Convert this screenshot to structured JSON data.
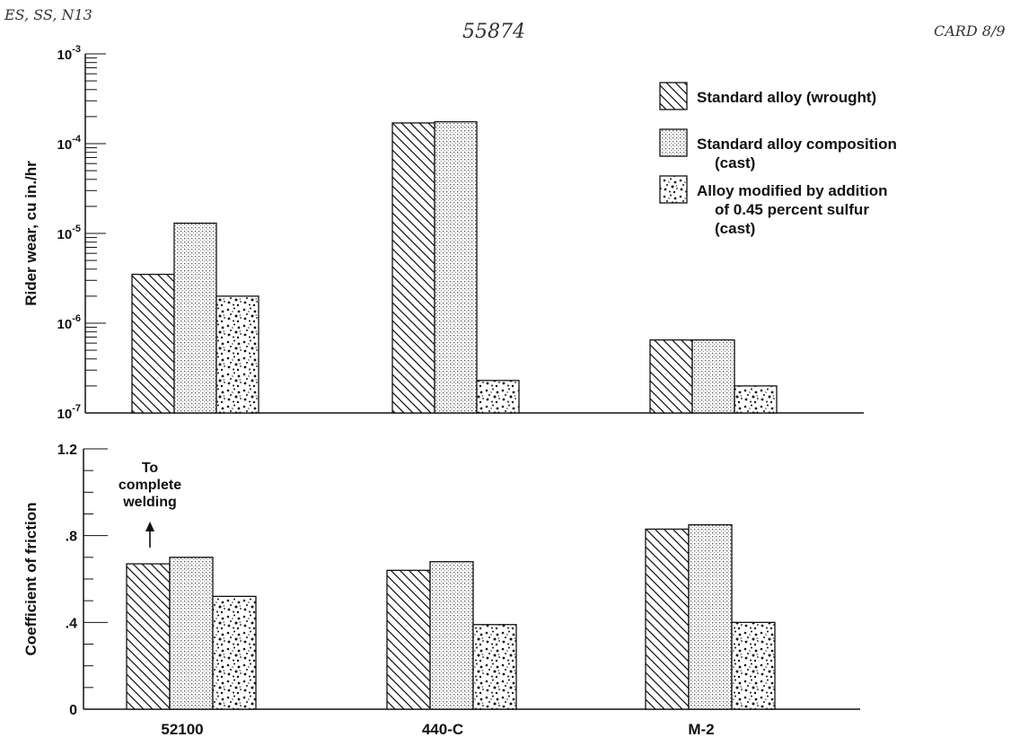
{
  "annotations": {
    "top_left": "ES, SS, N13",
    "top_center": "55874",
    "top_right": "CARD 8/9"
  },
  "legend": [
    {
      "lines": [
        "Standard alloy (wrought)"
      ],
      "pattern": "hatch"
    },
    {
      "lines": [
        "Standard alloy composition",
        "(cast)"
      ],
      "pattern": "fine-dots"
    },
    {
      "lines": [
        "Alloy modified by addition",
        "of 0.45 percent sulfur",
        "(cast)"
      ],
      "pattern": "speckle"
    }
  ],
  "friction_note": [
    "To",
    "complete",
    "welding"
  ],
  "chart_data": [
    {
      "type": "bar",
      "ylabel": "Rider wear, cu in./hr",
      "yscale": "log",
      "ylim": [
        1e-07,
        0.001
      ],
      "ytick_labels": [
        {
          "value": 1e-07,
          "base": "10",
          "exp": "-7"
        },
        {
          "value": 1e-06,
          "base": "10",
          "exp": "-6"
        },
        {
          "value": 1e-05,
          "base": "10",
          "exp": "-5"
        },
        {
          "value": 0.0001,
          "base": "10",
          "exp": "-4"
        },
        {
          "value": 0.001,
          "base": "10",
          "exp": "-3"
        }
      ],
      "categories": [
        "52100",
        "440-C",
        "M-2"
      ],
      "series": [
        {
          "name": "Standard alloy (wrought)",
          "values": [
            3.5e-06,
            0.00017,
            6.5e-07
          ]
        },
        {
          "name": "Standard alloy composition (cast)",
          "values": [
            1.3e-05,
            0.000175,
            6.5e-07
          ]
        },
        {
          "name": "Alloy modified by addition of 0.45 percent sulfur (cast)",
          "values": [
            2e-06,
            2.3e-07,
            2e-07
          ]
        }
      ]
    },
    {
      "type": "bar",
      "ylabel": "Coefficient of friction",
      "ylim": [
        0,
        1.2
      ],
      "ytick_labels": [
        {
          "value": 0,
          "label": "0"
        },
        {
          "value": 0.4,
          "label": ".4"
        },
        {
          "value": 0.8,
          "label": ".8"
        },
        {
          "value": 1.2,
          "label": "1.2"
        }
      ],
      "categories": [
        "52100",
        "440-C",
        "M-2"
      ],
      "series": [
        {
          "name": "Standard alloy (wrought)",
          "values": [
            0.67,
            0.64,
            0.83
          ]
        },
        {
          "name": "Standard alloy composition (cast)",
          "values": [
            0.7,
            0.68,
            0.85
          ]
        },
        {
          "name": "Alloy modified by addition of 0.45 percent sulfur (cast)",
          "values": [
            0.52,
            0.39,
            0.4
          ]
        }
      ]
    }
  ]
}
